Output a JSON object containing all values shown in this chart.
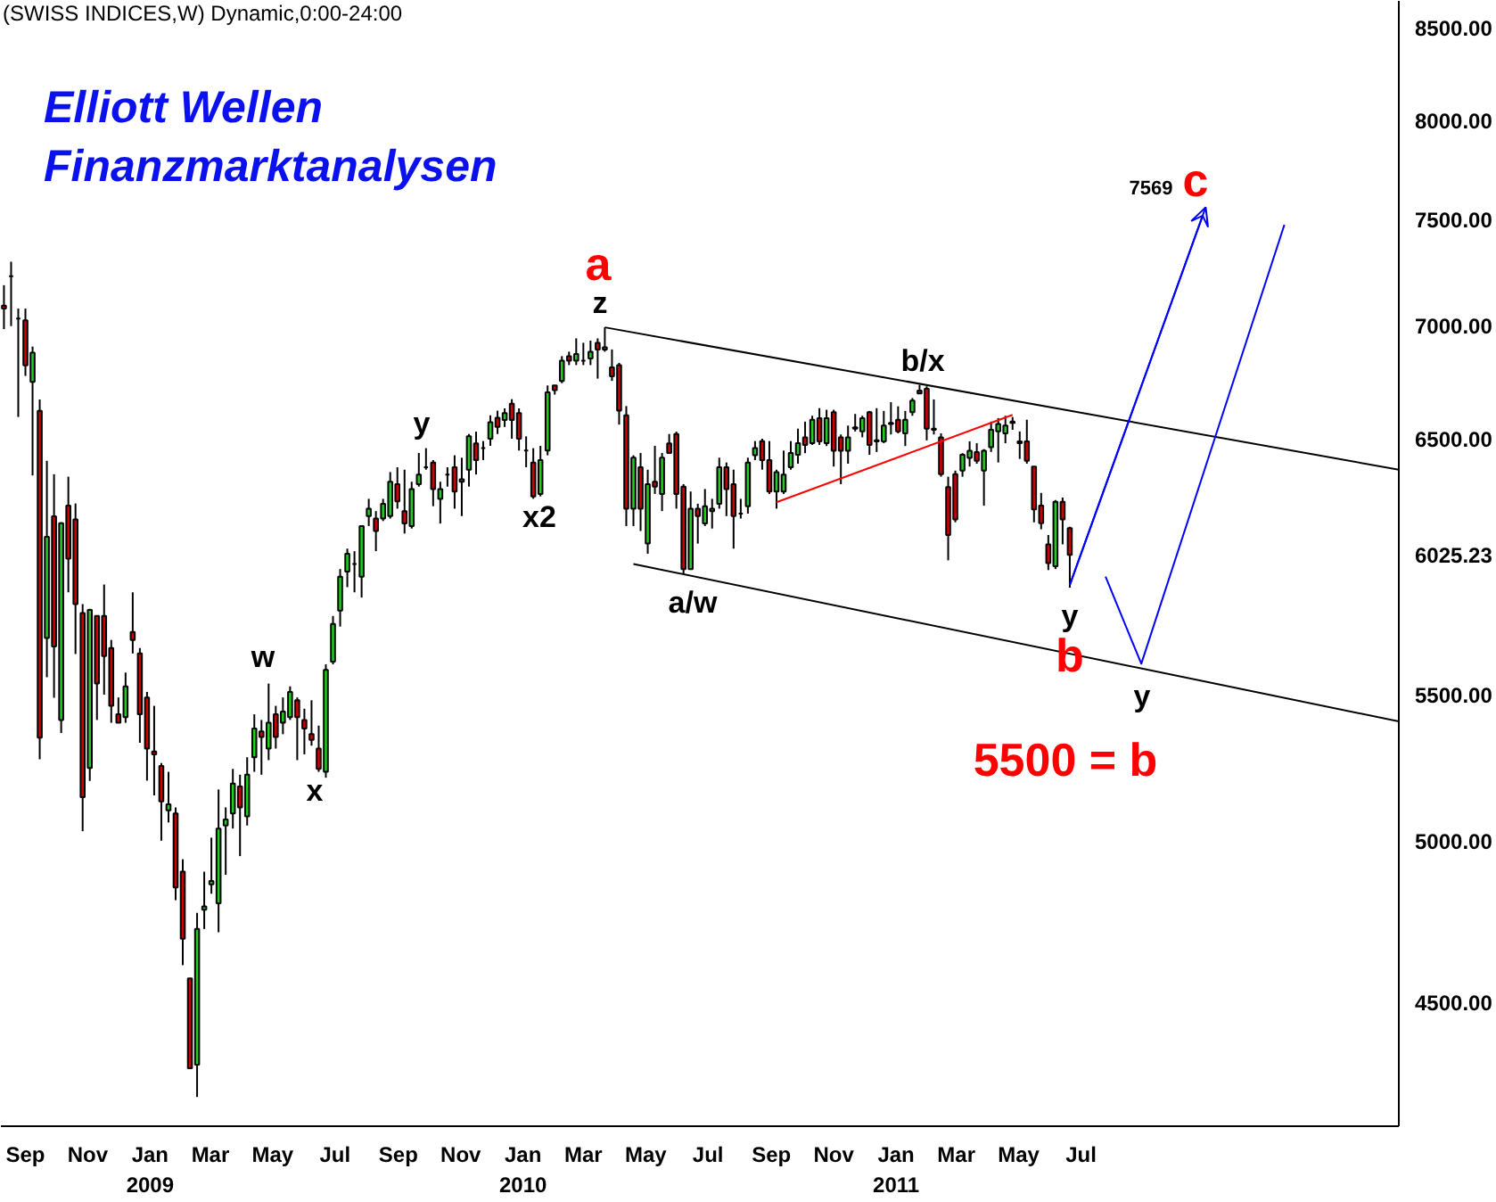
{
  "chart_data": {
    "type": "candlestick",
    "title": "Elliott Wellen",
    "subtitle": "Finanzmarktanalysen",
    "x": [
      "2008-08-11",
      "2008-08-18",
      "2008-08-25",
      "2008-09-01",
      "2008-09-08",
      "2008-09-15",
      "2008-09-22",
      "2008-09-29",
      "2008-10-06",
      "2008-10-13",
      "2008-10-20",
      "2008-10-27",
      "2008-11-03",
      "2008-11-10",
      "2008-11-17",
      "2008-11-24",
      "2008-12-01",
      "2008-12-08",
      "2008-12-15",
      "2008-12-22",
      "2008-12-29",
      "2009-01-05",
      "2009-01-12",
      "2009-01-19",
      "2009-01-26",
      "2009-02-02",
      "2009-02-09",
      "2009-02-16",
      "2009-02-23",
      "2009-03-02",
      "2009-03-09",
      "2009-03-16",
      "2009-03-23",
      "2009-03-30",
      "2009-04-06",
      "2009-04-13",
      "2009-04-20",
      "2009-04-27",
      "2009-05-04",
      "2009-05-11",
      "2009-05-18",
      "2009-05-25",
      "2009-06-01",
      "2009-06-08",
      "2009-06-15",
      "2009-06-22",
      "2009-06-29",
      "2009-07-06",
      "2009-07-13",
      "2009-07-20",
      "2009-07-27",
      "2009-08-03",
      "2009-08-10",
      "2009-08-17",
      "2009-08-24",
      "2009-08-31",
      "2009-09-07",
      "2009-09-14",
      "2009-09-21",
      "2009-09-28",
      "2009-10-05",
      "2009-10-12",
      "2009-10-19",
      "2009-10-26",
      "2009-11-02",
      "2009-11-09",
      "2009-11-16",
      "2009-11-23",
      "2009-11-30",
      "2009-12-07",
      "2009-12-14",
      "2009-12-21",
      "2009-12-28",
      "2010-01-04",
      "2010-01-11",
      "2010-01-18",
      "2010-01-25",
      "2010-02-01",
      "2010-02-08",
      "2010-02-15",
      "2010-02-22",
      "2010-03-01",
      "2010-03-08",
      "2010-03-15",
      "2010-03-22",
      "2010-03-29",
      "2010-04-05",
      "2010-04-12",
      "2010-04-19",
      "2010-04-26",
      "2010-05-03",
      "2010-05-10",
      "2010-05-17",
      "2010-05-24",
      "2010-05-31",
      "2010-06-07",
      "2010-06-14",
      "2010-06-21",
      "2010-06-28",
      "2010-07-05",
      "2010-07-12",
      "2010-07-19",
      "2010-07-26",
      "2010-08-02",
      "2010-08-09",
      "2010-08-16",
      "2010-08-23",
      "2010-08-30",
      "2010-09-06",
      "2010-09-13",
      "2010-09-20",
      "2010-09-27",
      "2010-10-04",
      "2010-10-11",
      "2010-10-18",
      "2010-10-25",
      "2010-11-01",
      "2010-11-08",
      "2010-11-15",
      "2010-11-22",
      "2010-11-29",
      "2010-12-06",
      "2010-12-13",
      "2010-12-20",
      "2010-12-27",
      "2011-01-03",
      "2011-01-10",
      "2011-01-17",
      "2011-01-24",
      "2011-01-31",
      "2011-02-07",
      "2011-02-14",
      "2011-02-21",
      "2011-02-28",
      "2011-03-07",
      "2011-03-14",
      "2011-03-21",
      "2011-03-28",
      "2011-04-04",
      "2011-04-11",
      "2011-04-18",
      "2011-04-25",
      "2011-05-02",
      "2011-05-09",
      "2011-05-16",
      "2011-05-23",
      "2011-05-30",
      "2011-06-06",
      "2011-06-13",
      "2011-06-20"
    ],
    "ohlc": [
      [
        7090,
        7185,
        6982,
        7076
      ],
      [
        7227,
        7296,
        6996,
        7227
      ],
      [
        7030,
        7076,
        6593,
        7030
      ],
      [
        7022,
        7076,
        6772,
        6819
      ],
      [
        6746,
        6903,
        6346,
        6876
      ],
      [
        6619,
        6669,
        5273,
        5348
      ],
      [
        5707,
        6407,
        5563,
        6097
      ],
      [
        6179,
        6351,
        5489,
        5676
      ],
      [
        5410,
        6155,
        5364,
        6151
      ],
      [
        6222,
        6341,
        5880,
        6011
      ],
      [
        6167,
        6231,
        5648,
        5835
      ],
      [
        5801,
        5835,
        5031,
        5144
      ],
      [
        5243,
        5817,
        5199,
        5813
      ],
      [
        5790,
        5790,
        5410,
        5540
      ],
      [
        5790,
        5910,
        5500,
        5640
      ],
      [
        5670,
        5700,
        5400,
        5460
      ],
      [
        5430,
        5490,
        5400,
        5400
      ],
      [
        5420,
        5580,
        5400,
        5530
      ],
      [
        5730,
        5880,
        5650,
        5700
      ],
      [
        5650,
        5670,
        5330,
        5430
      ],
      [
        5490,
        5510,
        5200,
        5310
      ],
      [
        5300,
        5460,
        5150,
        5290
      ],
      [
        5250,
        5260,
        5000,
        5130
      ],
      [
        5100,
        5230,
        5060,
        5120
      ],
      [
        5090,
        5110,
        4810,
        4850
      ],
      [
        4900,
        4940,
        4610,
        4690
      ],
      [
        4570,
        4570,
        4310,
        4310
      ],
      [
        4320,
        4770,
        4230,
        4720
      ],
      [
        4780,
        4900,
        4720,
        4790
      ],
      [
        4860,
        5010,
        4830,
        4870
      ],
      [
        4800,
        5170,
        4710,
        5040
      ],
      [
        5050,
        5110,
        4890,
        5070
      ],
      [
        5090,
        5240,
        5040,
        5190
      ],
      [
        5180,
        5220,
        4950,
        5110
      ],
      [
        5080,
        5280,
        5050,
        5220
      ],
      [
        5280,
        5430,
        5230,
        5380
      ],
      [
        5370,
        5410,
        5220,
        5350
      ],
      [
        5310,
        5540,
        5270,
        5400
      ],
      [
        5430,
        5460,
        5310,
        5350
      ],
      [
        5400,
        5490,
        5360,
        5440
      ],
      [
        5420,
        5530,
        5410,
        5510
      ],
      [
        5480,
        5490,
        5270,
        5420
      ],
      [
        5410,
        5450,
        5290,
        5380
      ],
      [
        5360,
        5480,
        5320,
        5340
      ],
      [
        5310,
        5390,
        5230,
        5240
      ],
      [
        5230,
        5610,
        5210,
        5590
      ],
      [
        5620,
        5790,
        5610,
        5760
      ],
      [
        5810,
        5970,
        5750,
        5940
      ],
      [
        5960,
        6050,
        5900,
        6030
      ],
      [
        5990,
        6040,
        5880,
        5990
      ],
      [
        5940,
        6140,
        5860,
        6140
      ],
      [
        6180,
        6250,
        6140,
        6210
      ],
      [
        6170,
        6200,
        6040,
        6120
      ],
      [
        6170,
        6250,
        6160,
        6230
      ],
      [
        6180,
        6360,
        6170,
        6320
      ],
      [
        6310,
        6380,
        6210,
        6240
      ],
      [
        6200,
        6370,
        6110,
        6150
      ],
      [
        6140,
        6320,
        6130,
        6290
      ],
      [
        6310,
        6440,
        6300,
        6350
      ],
      [
        6380,
        6460,
        6370,
        6380
      ],
      [
        6400,
        6410,
        6220,
        6290
      ],
      [
        6250,
        6320,
        6150,
        6290
      ],
      [
        6350,
        6380,
        6300,
        6350
      ],
      [
        6380,
        6430,
        6210,
        6280
      ],
      [
        6320,
        6420,
        6180,
        6330
      ],
      [
        6370,
        6520,
        6300,
        6510
      ],
      [
        6480,
        6530,
        6350,
        6410
      ],
      [
        6460,
        6490,
        6410,
        6460
      ],
      [
        6500,
        6600,
        6470,
        6570
      ],
      [
        6590,
        6620,
        6520,
        6550
      ],
      [
        6580,
        6630,
        6550,
        6610
      ],
      [
        6650,
        6670,
        6500,
        6580
      ],
      [
        6610,
        6630,
        6450,
        6500
      ],
      [
        6450,
        6510,
        6380,
        6450
      ],
      [
        6400,
        6460,
        6250,
        6260
      ],
      [
        6270,
        6470,
        6260,
        6410
      ],
      [
        6450,
        6730,
        6430,
        6700
      ],
      [
        6730,
        6730,
        6690,
        6710
      ],
      [
        6750,
        6860,
        6740,
        6840
      ],
      [
        6860,
        6880,
        6820,
        6840
      ],
      [
        6840,
        6940,
        6820,
        6870
      ],
      [
        6840,
        6920,
        6820,
        6840
      ],
      [
        6850,
        6930,
        6820,
        6880
      ],
      [
        6920,
        6940,
        6760,
        6890
      ],
      [
        6890,
        6990,
        6880,
        6900
      ],
      [
        6810,
        6890,
        6750,
        6770
      ],
      [
        6820,
        6830,
        6560,
        6620
      ],
      [
        6600,
        6640,
        6140,
        6210
      ],
      [
        6210,
        6430,
        6140,
        6420
      ],
      [
        6380,
        6440,
        6120,
        6210
      ],
      [
        6070,
        6370,
        6030,
        6310
      ],
      [
        6320,
        6470,
        6270,
        6300
      ],
      [
        6270,
        6440,
        6200,
        6420
      ],
      [
        6480,
        6520,
        6440,
        6440
      ],
      [
        6520,
        6530,
        6210,
        6270
      ],
      [
        6300,
        6310,
        5950,
        5970
      ],
      [
        5970,
        6280,
        5970,
        6210
      ],
      [
        6210,
        6230,
        6070,
        6180
      ],
      [
        6150,
        6290,
        6140,
        6220
      ],
      [
        6200,
        6250,
        6130,
        6210
      ],
      [
        6230,
        6420,
        6210,
        6380
      ],
      [
        6380,
        6400,
        6180,
        6290
      ],
      [
        6310,
        6370,
        6050,
        6180
      ],
      [
        6190,
        6250,
        6170,
        6190
      ],
      [
        6220,
        6420,
        6190,
        6400
      ],
      [
        6430,
        6490,
        6410,
        6460
      ],
      [
        6490,
        6500,
        6370,
        6410
      ],
      [
        6410,
        6490,
        6270,
        6280
      ],
      [
        6280,
        6370,
        6210,
        6360
      ],
      [
        6280,
        6450,
        6270,
        6350
      ],
      [
        6380,
        6490,
        6370,
        6440
      ],
      [
        6432,
        6543,
        6395,
        6481
      ],
      [
        6506,
        6573,
        6439,
        6474
      ],
      [
        6481,
        6598,
        6474,
        6581
      ],
      [
        6588,
        6631,
        6474,
        6489
      ],
      [
        6481,
        6624,
        6469,
        6588
      ],
      [
        6614,
        6624,
        6383,
        6449
      ],
      [
        6506,
        6518,
        6310,
        6449
      ],
      [
        6449,
        6556,
        6395,
        6506
      ],
      [
        6548,
        6606,
        6531,
        6543
      ],
      [
        6531,
        6598,
        6506,
        6588
      ],
      [
        6614,
        6619,
        6432,
        6474
      ],
      [
        6493,
        6631,
        6444,
        6489
      ],
      [
        6489,
        6619,
        6481,
        6556
      ],
      [
        6563,
        6657,
        6518,
        6568
      ],
      [
        6581,
        6639,
        6523,
        6531
      ],
      [
        6523,
        6619,
        6469,
        6581
      ],
      [
        6614,
        6675,
        6598,
        6664
      ],
      [
        6708,
        6733,
        6695,
        6695
      ],
      [
        6715,
        6726,
        6493,
        6543
      ],
      [
        6543,
        6669,
        6518,
        6538
      ],
      [
        6506,
        6523,
        6341,
        6351
      ],
      [
        6298,
        6341,
        6004,
        6104
      ],
      [
        6351,
        6366,
        6155,
        6167
      ],
      [
        6366,
        6439,
        6341,
        6432
      ],
      [
        6419,
        6489,
        6383,
        6449
      ],
      [
        6444,
        6481,
        6395,
        6407
      ],
      [
        6366,
        6456,
        6222,
        6449
      ],
      [
        6464,
        6573,
        6444,
        6538
      ],
      [
        6531,
        6588,
        6400,
        6563
      ],
      [
        6523,
        6598,
        6481,
        6556
      ],
      [
        6573,
        6593,
        6538,
        6568
      ],
      [
        6489,
        6531,
        6415,
        6481
      ],
      [
        6489,
        6581,
        6395,
        6407
      ],
      [
        6383,
        6383,
        6155,
        6207
      ],
      [
        6222,
        6274,
        6127,
        6151
      ],
      [
        6067,
        6104,
        5966,
        5993
      ],
      [
        5981,
        6245,
        5970,
        6238
      ],
      [
        6238,
        6255,
        6067,
        6167
      ],
      [
        6132,
        6137,
        5898,
        6025.23
      ]
    ],
    "colors": [
      "#d00000",
      "#000000",
      "#000000",
      "#d00000",
      "#22cc22",
      "#d00000",
      "#22cc22",
      "#d00000",
      "#22cc22",
      "#d00000",
      "#d00000",
      "#d00000",
      "#22cc22",
      "#d00000",
      "#d00000",
      "#d00000",
      "#d00000",
      "#22cc22",
      "#d00000",
      "#d00000",
      "#d00000",
      "#d00000",
      "#d00000",
      "#22cc22",
      "#d00000",
      "#d00000",
      "#d00000",
      "#22cc22",
      "#22cc22",
      "#22cc22",
      "#22cc22",
      "#22cc22",
      "#22cc22",
      "#d00000",
      "#22cc22",
      "#22cc22",
      "#d00000",
      "#22cc22",
      "#d00000",
      "#22cc22",
      "#22cc22",
      "#d00000",
      "#d00000",
      "#d00000",
      "#d00000",
      "#22cc22",
      "#22cc22",
      "#22cc22",
      "#22cc22",
      "#000000",
      "#22cc22",
      "#22cc22",
      "#d00000",
      "#22cc22",
      "#22cc22",
      "#d00000",
      "#d00000",
      "#22cc22",
      "#22cc22",
      "#000000",
      "#d00000",
      "#22cc22",
      "#000000",
      "#d00000",
      "#22cc22",
      "#22cc22",
      "#d00000",
      "#000000",
      "#22cc22",
      "#d00000",
      "#22cc22",
      "#d00000",
      "#d00000",
      "#000000",
      "#d00000",
      "#22cc22",
      "#22cc22",
      "#d00000",
      "#22cc22",
      "#d00000",
      "#22cc22",
      "#000000",
      "#22cc22",
      "#d00000",
      "#22cc22",
      "#d00000",
      "#d00000",
      "#d00000",
      "#22cc22",
      "#d00000",
      "#22cc22",
      "#d00000",
      "#22cc22",
      "#d00000",
      "#d00000",
      "#d00000",
      "#22cc22",
      "#d00000",
      "#22cc22",
      "#22cc22",
      "#22cc22",
      "#d00000",
      "#d00000",
      "#000000",
      "#22cc22",
      "#22cc22",
      "#d00000",
      "#d00000",
      "#22cc22",
      "#22cc22",
      "#22cc22",
      "#22cc22",
      "#d00000",
      "#22cc22",
      "#d00000",
      "#22cc22",
      "#d00000",
      "#d00000",
      "#22cc22",
      "#d00000",
      "#22cc22",
      "#d00000",
      "#d00000",
      "#22cc22",
      "#22cc22",
      "#d00000",
      "#22cc22",
      "#22cc22",
      "#d00000",
      "#d00000",
      "#d00000",
      "#d00000",
      "#d00000",
      "#d00000",
      "#22cc22",
      "#22cc22",
      "#d00000",
      "#22cc22",
      "#22cc22",
      "#22cc22",
      "#22cc22",
      "#d00000",
      "#d00000",
      "#d00000",
      "#d00000",
      "#d00000",
      "#d00000",
      "#22cc22",
      "#d00000",
      "#d00000"
    ],
    "series": [
      {
        "type": "line",
        "color": "#000000",
        "x": [
          "2010-03-22",
          "2012-05-07"
        ],
        "values": [
          6990,
          6370
        ]
      },
      {
        "type": "line",
        "color": "#000000",
        "x": [
          "2010-04-19",
          "2012-05-07"
        ],
        "values": [
          5990,
          5405
        ]
      },
      {
        "type": "line",
        "color": "#ff0000",
        "x": [
          "2010-09-06",
          "2011-04-25"
        ],
        "values": [
          6236,
          6602
        ]
      },
      {
        "type": "line",
        "color": "#0000ff",
        "x": [
          "2011-06-20",
          "2011-10-31"
        ],
        "values": [
          5908,
          7560
        ]
      },
      {
        "type": "line",
        "color": "#0000ff",
        "x": [
          "2011-07-25",
          "2011-08-29",
          "2012-01-16"
        ],
        "values": [
          5941,
          5612,
          7474
        ]
      }
    ],
    "xlim": [
      "2008-08-08",
      "2012-05-07"
    ],
    "xticks": [
      {
        "value": "2008-09-01",
        "label": "Sep"
      },
      {
        "value": "2008-11-01",
        "label": "Nov"
      },
      {
        "value": "2009-01-01",
        "label": "Jan\n2009"
      },
      {
        "value": "2009-03-01",
        "label": "Mar"
      },
      {
        "value": "2009-05-01",
        "label": "May"
      },
      {
        "value": "2009-07-01",
        "label": "Jul"
      },
      {
        "value": "2009-09-01",
        "label": "Sep"
      },
      {
        "value": "2009-11-01",
        "label": "Nov"
      },
      {
        "value": "2010-01-01",
        "label": "Jan\n2010"
      },
      {
        "value": "2010-03-01",
        "label": "Mar"
      },
      {
        "value": "2010-05-01",
        "label": "May"
      },
      {
        "value": "2010-07-01",
        "label": "Jul"
      },
      {
        "value": "2010-09-01",
        "label": "Sep"
      },
      {
        "value": "2010-11-01",
        "label": "Nov"
      },
      {
        "value": "2011-01-01",
        "label": "Jan\n2011"
      },
      {
        "value": "2011-03-01",
        "label": "Mar"
      },
      {
        "value": "2011-05-01",
        "label": "May"
      },
      {
        "value": "2011-07-01",
        "label": "Jul"
      }
    ],
    "ylim": [
      4150,
      8650
    ],
    "yticks": [
      {
        "value": 4500,
        "label": "4500.00"
      },
      {
        "value": 5000,
        "label": "5000.00"
      },
      {
        "value": 5500,
        "label": "5500.00"
      },
      {
        "value": 6025.23,
        "label": "6025.23"
      },
      {
        "value": 6500,
        "label": "6500.00"
      },
      {
        "value": 7000,
        "label": "7000.00"
      },
      {
        "value": 7500,
        "label": "7500.00"
      },
      {
        "value": 8000,
        "label": "8000.00"
      },
      {
        "value": 8500,
        "label": "8500.00"
      }
    ],
    "log": "y",
    "annotations": [
      "(SWISS INDICES,W) Dynamic,0:00-24:00",
      "a",
      "z",
      "y",
      "x2",
      "w",
      "x",
      "b/x",
      "a/w",
      {
        "text": "y",
        "x": "2011-06-20",
        "y": 5898
      },
      {
        "text": "b",
        "x": "2011-06-20",
        "y": 5898
      },
      "y",
      "c",
      "7569",
      "5500 = b"
    ]
  }
}
